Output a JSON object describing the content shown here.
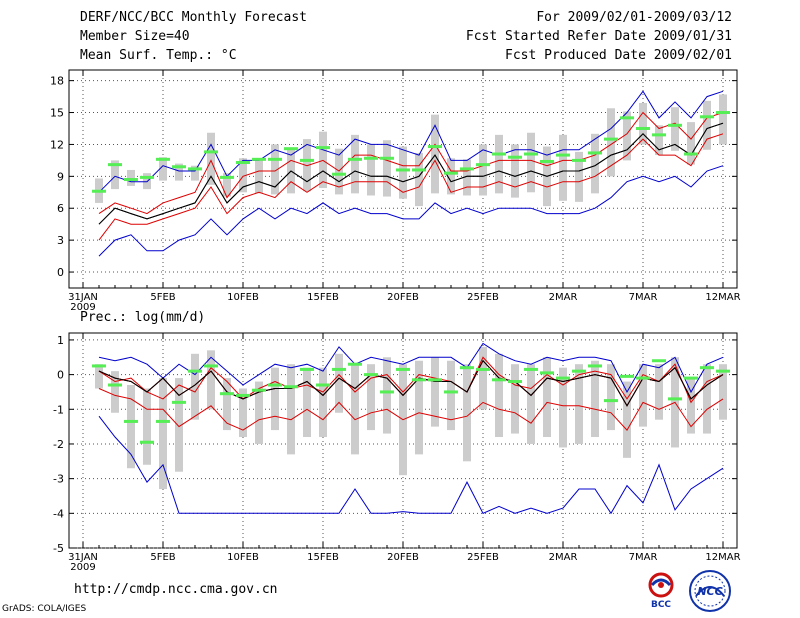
{
  "header": {
    "title": "DERF/NCC/BCC Monthly Forecast",
    "member_size": "Member Size=40",
    "variable": "Mean Surf. Temp.: °C",
    "period": "For 2009/02/01-2009/03/12",
    "fcst_started": "Fcst Started Refer Date 2009/01/31",
    "fcst_produced": "Fcst Produced Date 2009/02/01"
  },
  "footer": {
    "url": "http://cmdp.ncc.cma.gov.cn",
    "grads": "GrADS: COLA/IGES",
    "logo_bcc": "BCC",
    "logo_ncc": "NCC"
  },
  "colors": {
    "max_line": "#0000cc",
    "min_line": "#0000cc",
    "pct_line": "#dd0000",
    "median_line": "#000000",
    "observed_bar": "#55ee55",
    "spread_box": "#cccccc"
  },
  "chart_data": [
    {
      "id": "temperature",
      "type": "line",
      "title": "",
      "ylim": [
        -1.5,
        19
      ],
      "yticks": [
        0,
        3,
        6,
        9,
        12,
        15,
        18
      ],
      "grid": true,
      "x": [
        0,
        1,
        2,
        3,
        4,
        5,
        6,
        7,
        8,
        9,
        10,
        11,
        12,
        13,
        14,
        15,
        16,
        17,
        18,
        19,
        20,
        21,
        22,
        23,
        24,
        25,
        26,
        27,
        28,
        29,
        30,
        31,
        32,
        33,
        34,
        35,
        36,
        37,
        38,
        39,
        40
      ],
      "xticks": [
        {
          "x": 0,
          "label": "31JAN",
          "sub": "2009"
        },
        {
          "x": 5,
          "label": "5FEB"
        },
        {
          "x": 10,
          "label": "10FEB"
        },
        {
          "x": 15,
          "label": "15FEB"
        },
        {
          "x": 20,
          "label": "20FEB"
        },
        {
          "x": 25,
          "label": "25FEB"
        },
        {
          "x": 30,
          "label": "2MAR"
        },
        {
          "x": 35,
          "label": "7MAR"
        },
        {
          "x": 40,
          "label": "12MAR"
        }
      ],
      "series": [
        {
          "name": "max",
          "role": "max",
          "values": [
            null,
            7.5,
            9,
            8.5,
            8.5,
            10,
            9.5,
            9.5,
            12,
            9,
            10.5,
            10.5,
            11.5,
            11,
            12,
            11.5,
            11,
            12.5,
            12,
            12,
            11.5,
            11,
            13.8,
            10.5,
            10.5,
            11.5,
            11,
            11.5,
            11.5,
            11,
            11.5,
            11.5,
            12.5,
            13.5,
            15,
            17,
            14.5,
            16,
            14.5,
            16.5,
            17
          ]
        },
        {
          "name": "p90",
          "role": "pct",
          "values": [
            null,
            5.5,
            6.5,
            6,
            5.5,
            6.5,
            7,
            7.5,
            10.5,
            7,
            9,
            9.5,
            9.5,
            10.5,
            10,
            10.5,
            9.5,
            11,
            11,
            10.5,
            10,
            10,
            12,
            9.5,
            9.5,
            10,
            10.5,
            10.5,
            10.5,
            10,
            10.5,
            10.5,
            11,
            12,
            13,
            15,
            13.5,
            14,
            12.5,
            14.5,
            15
          ]
        },
        {
          "name": "median",
          "role": "median",
          "values": [
            null,
            4.5,
            6,
            5.5,
            5,
            5.5,
            6,
            6.5,
            9,
            6.5,
            8,
            8.5,
            8,
            9.5,
            8.5,
            9.5,
            8.5,
            9.5,
            9,
            9,
            8.5,
            9,
            11,
            8.5,
            9,
            9,
            9.5,
            9,
            9.5,
            9,
            9.5,
            9.5,
            10,
            11,
            11.5,
            13,
            11.5,
            12,
            11,
            13.5,
            14
          ]
        },
        {
          "name": "p10",
          "role": "pct",
          "values": [
            null,
            3,
            5,
            4.5,
            4.5,
            5,
            5.5,
            6,
            8,
            5.5,
            7,
            7.5,
            7,
            8.5,
            7.5,
            8.5,
            8,
            8.5,
            8.5,
            8.5,
            7.5,
            8,
            10.5,
            7.5,
            8,
            8,
            8.5,
            8,
            8.5,
            8,
            8.5,
            8.5,
            9,
            10,
            11,
            12.5,
            11,
            11,
            10,
            12.5,
            13
          ]
        },
        {
          "name": "min",
          "role": "min",
          "values": [
            null,
            1.5,
            3,
            3.5,
            2,
            2,
            3,
            3.5,
            5,
            3.5,
            5,
            6,
            5,
            6,
            5.5,
            6.5,
            5.5,
            6,
            5.5,
            5.5,
            5,
            5,
            6.5,
            5.5,
            6,
            5.5,
            6,
            6,
            6,
            5.5,
            5.5,
            5.5,
            6,
            7,
            8.5,
            9,
            8.5,
            9,
            8,
            9.5,
            10
          ]
        }
      ],
      "box_low": [
        null,
        6.5,
        7.8,
        8.1,
        7.8,
        8.6,
        8.6,
        8.6,
        8.2,
        7.1,
        7.5,
        7.4,
        7.3,
        7.4,
        7.6,
        7.9,
        7.3,
        7.4,
        7.2,
        7.1,
        6.9,
        6.2,
        7.4,
        7.3,
        7.2,
        7.2,
        7.4,
        7.0,
        7.5,
        6.2,
        6.7,
        6.6,
        7.4,
        9.0,
        10.5,
        12.0,
        11.0,
        11.4,
        10.1,
        11.5,
        12.0
      ],
      "box_high": [
        null,
        8.8,
        10.5,
        9.6,
        9.3,
        10.8,
        10.2,
        10.0,
        13.1,
        9.3,
        10.7,
        10.6,
        12.0,
        11.5,
        12.5,
        13.2,
        11.6,
        12.9,
        12.0,
        12.4,
        11.8,
        11.2,
        14.8,
        10.7,
        10.6,
        12.0,
        12.9,
        12.0,
        13.1,
        11.8,
        12.9,
        11.3,
        13.0,
        15.4,
        15.1,
        15.9,
        13.8,
        15.5,
        14.1,
        16.1,
        16.7
      ],
      "observed": [
        null,
        7.6,
        10.1,
        8.7,
        8.9,
        10.6,
        9.9,
        9.7,
        11.3,
        8.9,
        10.3,
        10.6,
        10.6,
        11.6,
        10.5,
        11.7,
        9.2,
        10.6,
        10.7,
        10.7,
        9.6,
        9.6,
        11.8,
        9.3,
        9.7,
        10.1,
        11.1,
        10.8,
        11.1,
        10.4,
        11.0,
        10.5,
        11.2,
        12.5,
        14.5,
        13.5,
        12.9,
        13.8,
        11.1,
        14.6,
        15.0
      ]
    },
    {
      "id": "precipitation",
      "type": "line",
      "title": "Prec.: log(mm/d)",
      "ylim": [
        -5,
        1.2
      ],
      "yticks": [
        -5,
        -4,
        -3,
        -2,
        -1,
        0,
        1
      ],
      "grid": true,
      "x": [
        0,
        1,
        2,
        3,
        4,
        5,
        6,
        7,
        8,
        9,
        10,
        11,
        12,
        13,
        14,
        15,
        16,
        17,
        18,
        19,
        20,
        21,
        22,
        23,
        24,
        25,
        26,
        27,
        28,
        29,
        30,
        31,
        32,
        33,
        34,
        35,
        36,
        37,
        38,
        39,
        40
      ],
      "xticks": [
        {
          "x": 0,
          "label": "31JAN",
          "sub": "2009"
        },
        {
          "x": 5,
          "label": "5FEB"
        },
        {
          "x": 10,
          "label": "10FEB"
        },
        {
          "x": 15,
          "label": "15FEB"
        },
        {
          "x": 20,
          "label": "20FEB"
        },
        {
          "x": 25,
          "label": "25FEB"
        },
        {
          "x": 30,
          "label": "2MAR"
        },
        {
          "x": 35,
          "label": "7MAR"
        },
        {
          "x": 40,
          "label": "12MAR"
        }
      ],
      "series": [
        {
          "name": "max",
          "role": "max",
          "values": [
            null,
            0.5,
            0.4,
            0.5,
            0.3,
            -0.1,
            0.3,
            0,
            0.5,
            0.1,
            -0.3,
            0,
            0.3,
            0.2,
            0.3,
            0.1,
            0.8,
            0.3,
            0.5,
            0.4,
            0.3,
            0.5,
            0.5,
            0.5,
            0.2,
            0.9,
            0.6,
            0.4,
            0.3,
            0.5,
            0.4,
            0.5,
            0.5,
            0.4,
            -0.5,
            0.3,
            0.2,
            0.5,
            -0.5,
            0.3,
            0.5
          ]
        },
        {
          "name": "p90",
          "role": "pct",
          "values": [
            null,
            0.1,
            -0.2,
            -0.1,
            -0.5,
            -0.7,
            -0.3,
            -0.5,
            0.2,
            -0.2,
            -0.7,
            -0.4,
            -0.2,
            -0.4,
            -0.3,
            -0.5,
            0,
            -0.5,
            -0.1,
            0,
            -0.5,
            0,
            -0.1,
            -0.2,
            -0.5,
            0.5,
            0,
            -0.3,
            -0.4,
            0,
            -0.3,
            0,
            0.1,
            0,
            -0.7,
            0,
            -0.2,
            0.3,
            -0.8,
            -0.2,
            0
          ]
        },
        {
          "name": "median",
          "role": "median",
          "values": [
            null,
            0.1,
            -0.1,
            -0.2,
            -0.5,
            -0.1,
            -0.6,
            -0.3,
            0.1,
            -0.5,
            -0.7,
            -0.5,
            -0.4,
            -0.4,
            -0.2,
            -0.6,
            -0.1,
            -0.4,
            0,
            -0.1,
            -0.6,
            -0.1,
            -0.2,
            -0.2,
            -0.5,
            0.4,
            -0.1,
            -0.2,
            -0.6,
            -0.1,
            -0.2,
            -0.1,
            0,
            -0.1,
            -0.9,
            -0.1,
            -0.2,
            0.2,
            -0.7,
            -0.3,
            0
          ]
        },
        {
          "name": "p10",
          "role": "pct",
          "values": [
            null,
            -0.4,
            -0.6,
            -0.7,
            -1.0,
            -1.0,
            -1.5,
            -1.2,
            -0.9,
            -1.4,
            -1.6,
            -1.3,
            -1.2,
            -1.3,
            -1.0,
            -1.3,
            -0.8,
            -1.3,
            -1.1,
            -1.0,
            -1.3,
            -1.1,
            -1.2,
            -1.3,
            -1.2,
            -0.8,
            -1.0,
            -1.1,
            -1.4,
            -0.8,
            -0.9,
            -0.9,
            -1.0,
            -1.1,
            -1.6,
            -0.8,
            -1.0,
            -0.8,
            -1.5,
            -1.0,
            -0.7
          ]
        },
        {
          "name": "min",
          "role": "min",
          "values": [
            null,
            -1.2,
            -1.8,
            -2.3,
            -3.1,
            -2.6,
            -4.0,
            -4.0,
            -4.0,
            -4.0,
            -4.0,
            -4.0,
            -4.0,
            -4.0,
            -4.0,
            -4.0,
            -4.0,
            -3.3,
            -4.0,
            -4.0,
            -3.95,
            -4.0,
            -4.0,
            -4.0,
            -3.1,
            -4.0,
            -3.8,
            -4.0,
            -3.85,
            -4.0,
            -3.85,
            -3.3,
            -3.3,
            -4.0,
            -3.2,
            -3.7,
            -2.6,
            -3.9,
            -3.3,
            -3.0,
            -2.7
          ]
        },
        {
          "name": "ensemble_median_red",
          "role": "pct_mid",
          "values": [
            null,
            0.1,
            -0.1,
            -0.2,
            -0.5,
            -0.1,
            -0.6,
            -0.3,
            0.1,
            -0.5,
            -0.7,
            -0.5,
            -0.4,
            -0.4,
            -0.2,
            -0.6,
            -0.1,
            -0.4,
            0,
            -0.1,
            -0.6,
            -0.1,
            -0.2,
            -0.2,
            -0.5,
            0.4,
            -0.1,
            -0.2,
            -0.6,
            -0.1,
            -0.2,
            -0.1,
            0,
            -0.1,
            -0.9,
            -0.1,
            -0.2,
            0.2,
            -0.7,
            -0.3,
            0
          ]
        }
      ],
      "box_low": [
        null,
        -0.4,
        -1.1,
        -2.7,
        -2.6,
        -3.3,
        -2.8,
        -1.3,
        -1.0,
        -1.6,
        -1.8,
        -2.0,
        -1.6,
        -2.3,
        -1.8,
        -1.8,
        -1.1,
        -2.3,
        -1.6,
        -1.7,
        -2.9,
        -2.3,
        -1.5,
        -1.6,
        -2.5,
        -1.0,
        -1.8,
        -1.7,
        -2.0,
        -1.8,
        -2.1,
        -2.0,
        -1.8,
        -1.6,
        -2.4,
        -1.5,
        -1.3,
        -2.1,
        -1.7,
        -1.7,
        -1.3
      ],
      "box_high": [
        null,
        0.3,
        0.1,
        -0.3,
        -0.4,
        -0.1,
        -0.1,
        0.6,
        0.7,
        -0.1,
        -0.4,
        -0.2,
        0.2,
        0.3,
        0.2,
        0.2,
        0.6,
        0.3,
        0.3,
        0.5,
        0.3,
        0.4,
        0.5,
        0.4,
        0.3,
        0.8,
        0.6,
        0.3,
        0.3,
        0.5,
        0.2,
        0.3,
        0.4,
        0.3,
        -0.2,
        0.3,
        0.3,
        0.5,
        -0.1,
        0.3,
        0.3
      ],
      "observed": [
        null,
        0.25,
        -0.3,
        -1.35,
        -1.95,
        -1.35,
        -0.8,
        0.1,
        0.25,
        -0.55,
        -0.6,
        -0.45,
        -0.3,
        -0.35,
        0.15,
        -0.3,
        0.15,
        0.3,
        0,
        -0.5,
        0.15,
        -0.15,
        -0.15,
        -0.5,
        0.2,
        0.15,
        -0.15,
        -0.2,
        0.15,
        0.05,
        -0.1,
        0.1,
        0.25,
        -0.75,
        -0.05,
        -0.1,
        0.4,
        -0.7,
        -0.1,
        0.2,
        0.1
      ]
    }
  ]
}
